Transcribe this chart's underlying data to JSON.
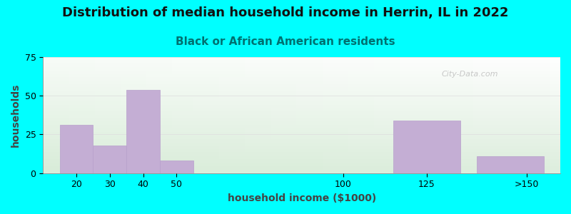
{
  "title": "Distribution of median household income in Herrin, IL in 2022",
  "subtitle": "Black or African American residents",
  "xlabel": "household income ($1000)",
  "ylabel": "households",
  "background_color": "#00FFFF",
  "bar_color": "#C4AED4",
  "bar_edge_color": "#b8a0cc",
  "categories": [
    "20",
    "30",
    "40",
    "50",
    "100",
    "125",
    ">150"
  ],
  "bar_lefts": [
    15,
    25,
    35,
    45,
    75,
    115,
    140
  ],
  "bar_widths": [
    10,
    10,
    10,
    10,
    10,
    20,
    20
  ],
  "values": [
    31,
    18,
    54,
    8,
    0,
    34,
    11
  ],
  "xlim": [
    10,
    165
  ],
  "ylim": [
    0,
    75
  ],
  "xtick_positions": [
    20,
    30,
    40,
    50,
    100,
    125,
    155
  ],
  "xtick_labels": [
    "20",
    "30",
    "40",
    "50",
    "100",
    "125",
    ">150"
  ],
  "yticks": [
    0,
    25,
    50,
    75
  ],
  "title_fontsize": 13,
  "subtitle_fontsize": 11,
  "axis_label_fontsize": 10,
  "tick_fontsize": 9,
  "title_color": "#111111",
  "subtitle_color": "#007070",
  "watermark_text": "City-Data.com"
}
